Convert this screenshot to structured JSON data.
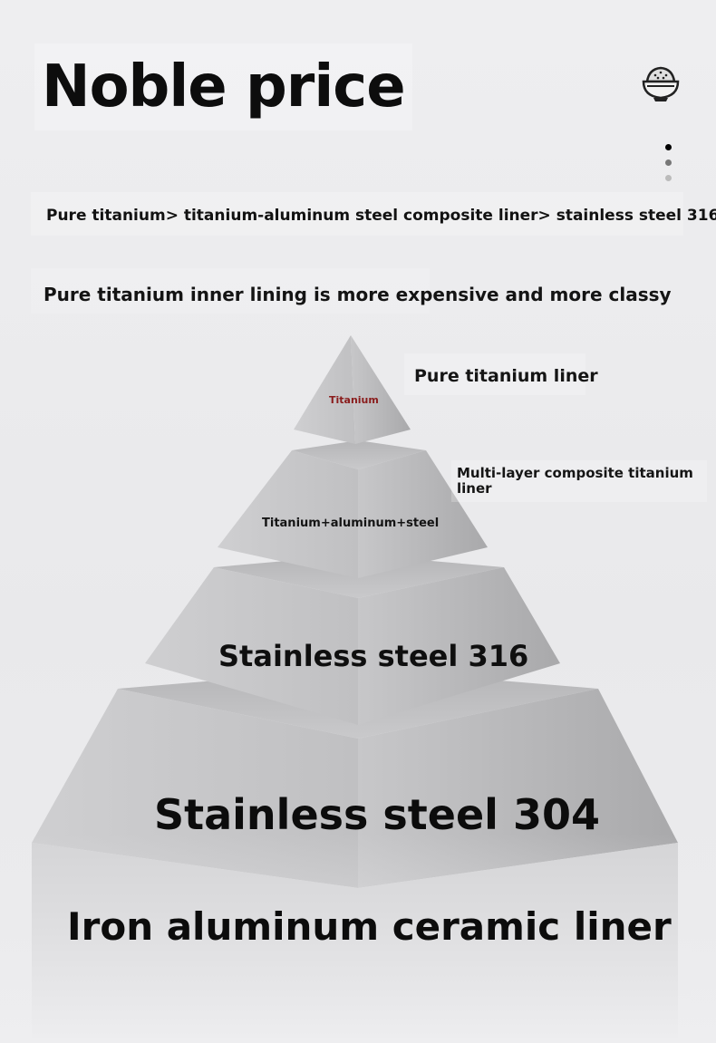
{
  "header": {
    "title": "Noble price",
    "icon": "rice-bowl-icon"
  },
  "pager": {
    "active_index": 0,
    "count": 3
  },
  "subtitle": "Pure titanium> titanium-aluminum steel composite liner> stainless steel 316",
  "tagline": "Pure titanium inner lining is more expensive and more classy",
  "pyramid": {
    "tier1": {
      "label": "Titanium",
      "side_label": "Pure titanium liner",
      "label_color": "#8a1c1c"
    },
    "tier2": {
      "label": "Titanium+aluminum+steel",
      "side_label_line1": "Multi-layer composite titanium",
      "side_label_line2": "liner"
    },
    "tier3": {
      "label": "Stainless steel 316"
    },
    "tier4": {
      "label": "Stainless steel 304"
    },
    "tier5": {
      "label": "Iron aluminum ceramic liner"
    }
  }
}
